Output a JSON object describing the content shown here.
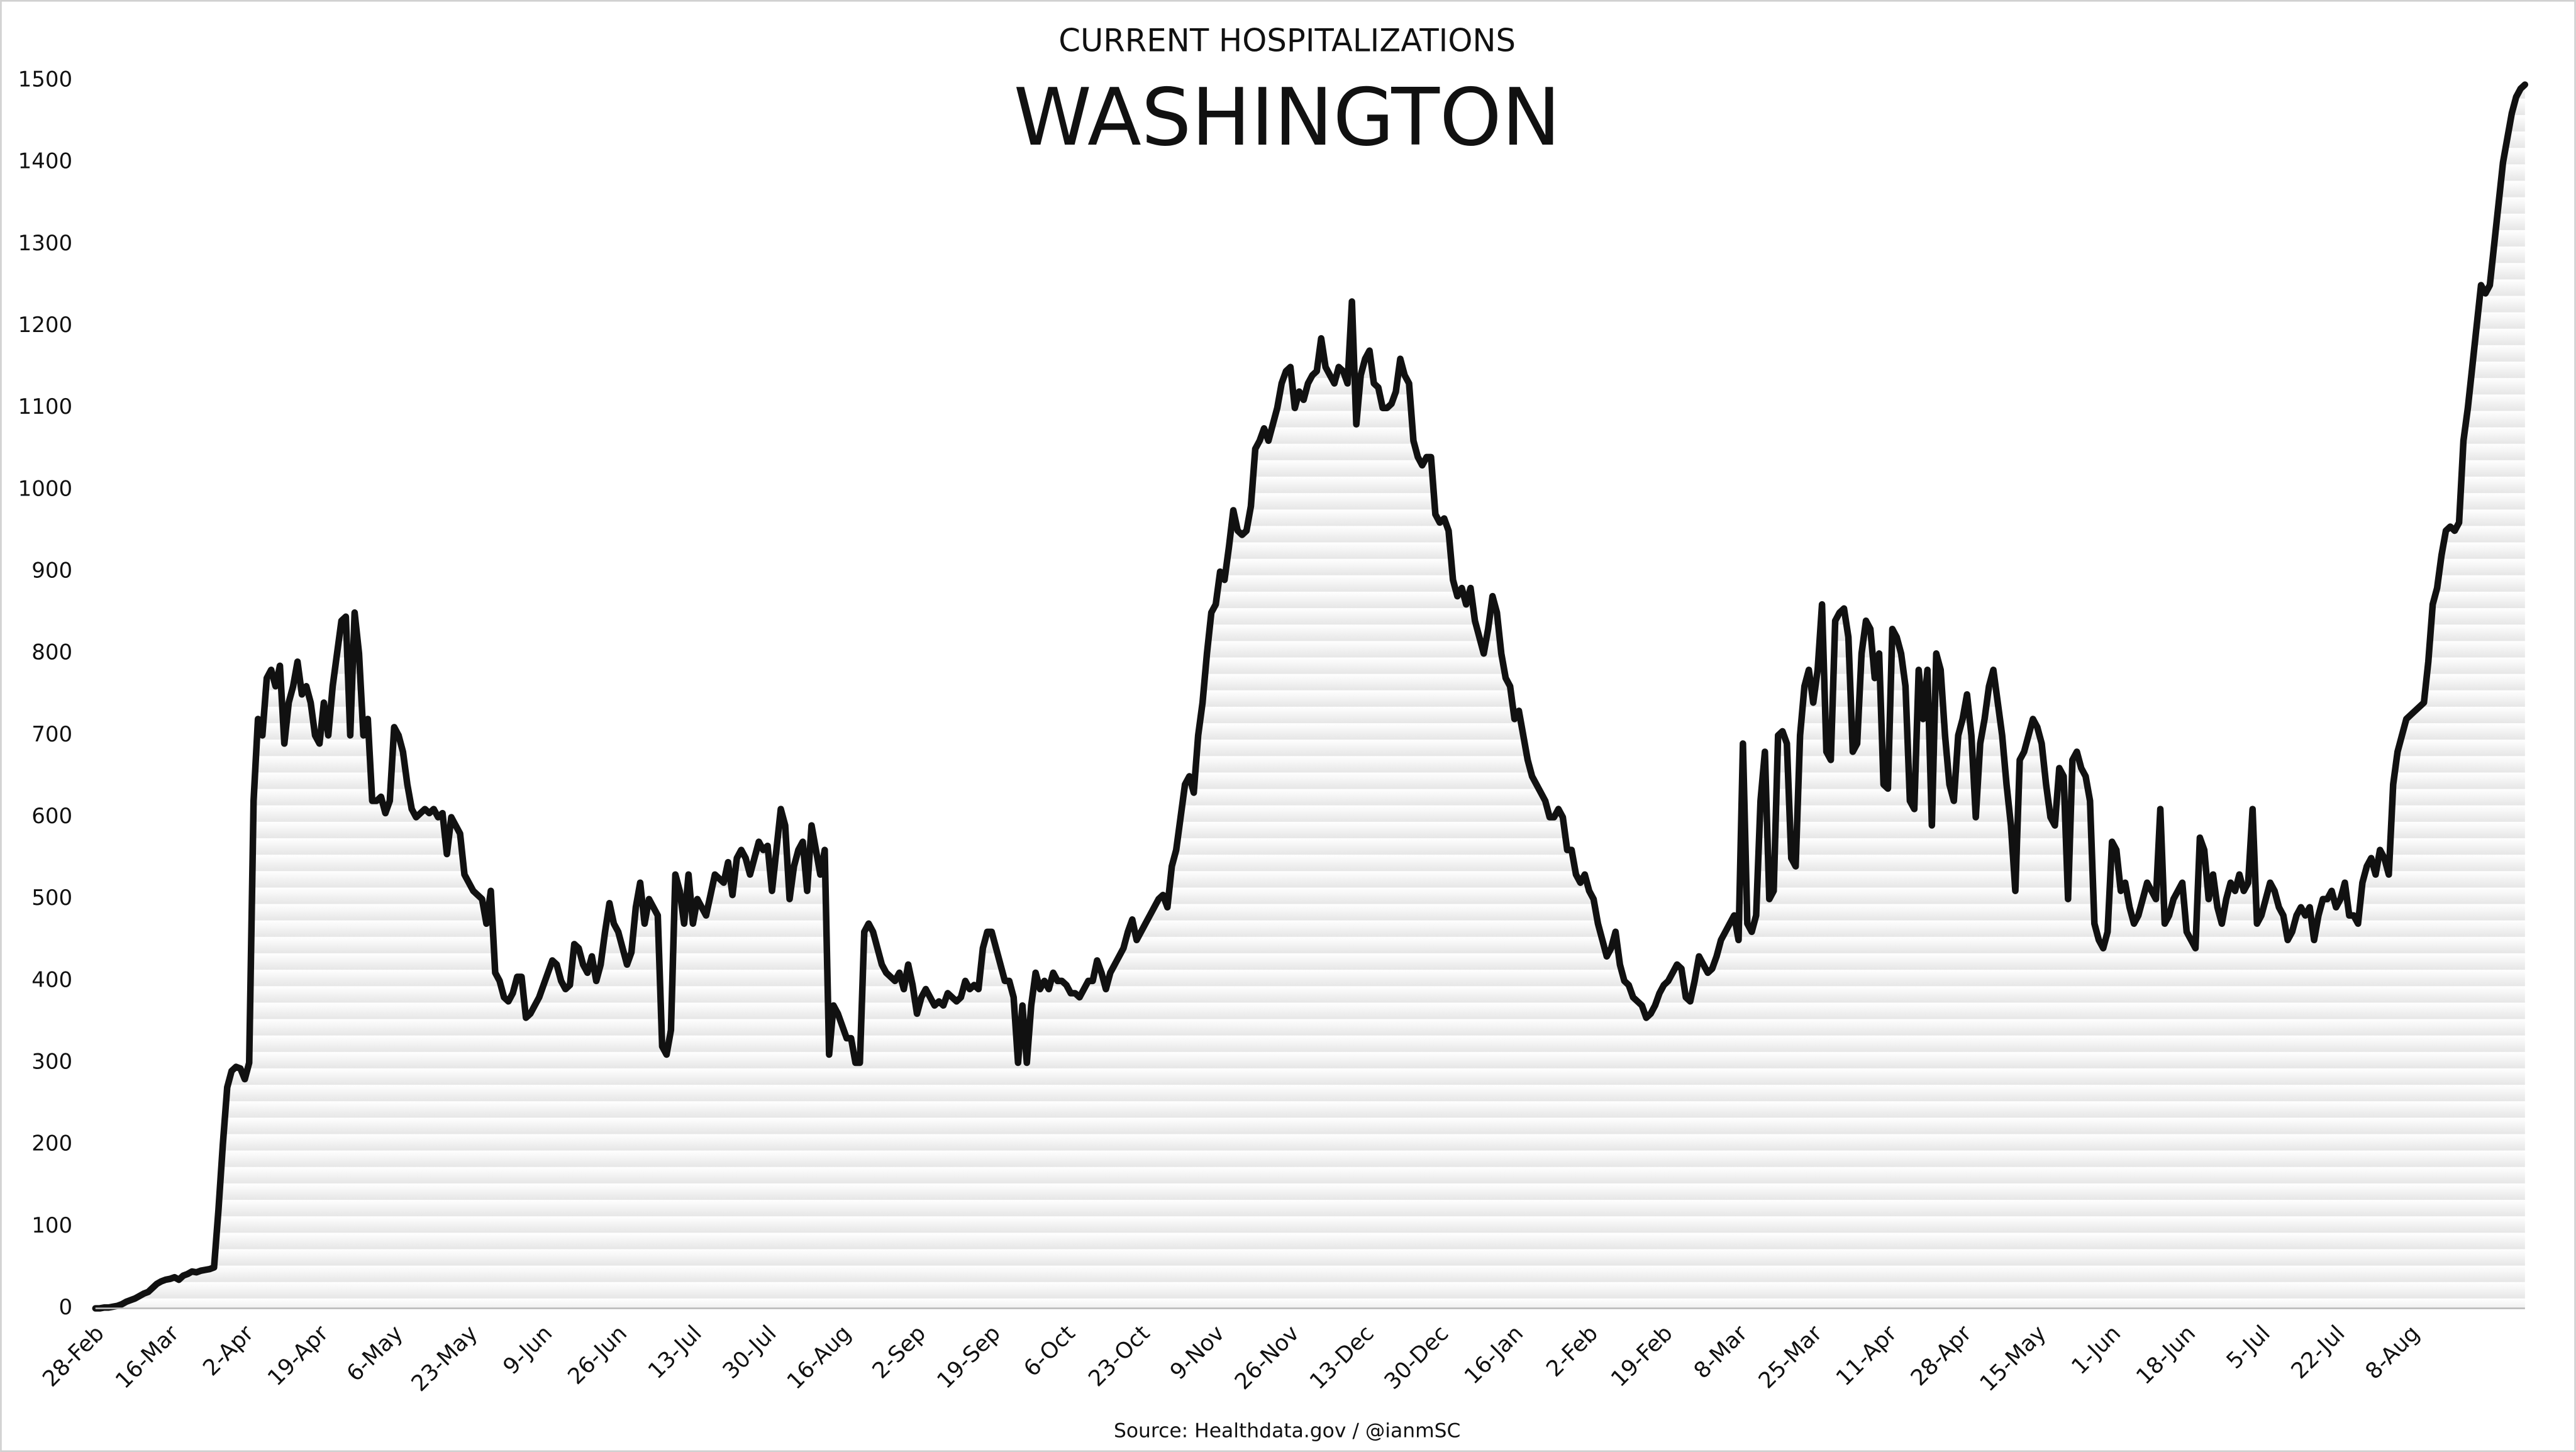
{
  "chart_data": {
    "type": "line",
    "header": "CURRENT HOSPITALIZATIONS",
    "title": "WASHINGTON",
    "source": "Source: Healthdata.gov / @ianmSC",
    "color": "#111111",
    "ylim": [
      0,
      1500
    ],
    "yticks": [
      0,
      100,
      200,
      300,
      400,
      500,
      600,
      700,
      800,
      900,
      1000,
      1100,
      1200,
      1300,
      1400,
      1500
    ],
    "categories": [
      "28-Feb",
      null,
      null,
      null,
      null,
      null,
      null,
      null,
      null,
      null,
      null,
      null,
      null,
      null,
      null,
      null,
      null,
      "16-Mar",
      null,
      null,
      null,
      null,
      null,
      null,
      null,
      null,
      null,
      null,
      null,
      null,
      null,
      null,
      null,
      null,
      "2-Apr",
      null,
      null,
      null,
      null,
      null,
      null,
      null,
      null,
      null,
      null,
      null,
      null,
      null,
      null,
      null,
      null,
      "19-Apr",
      null,
      null,
      null,
      null,
      null,
      null,
      null,
      null,
      null,
      null,
      null,
      null,
      null,
      null,
      null,
      null,
      "6-May",
      null,
      null,
      null,
      null,
      null,
      null,
      null,
      null,
      null,
      null,
      null,
      null,
      null,
      null,
      null,
      null,
      "23-May",
      null,
      null,
      null,
      null,
      null,
      null,
      null,
      null,
      null,
      null,
      null,
      null,
      null,
      null,
      null,
      null,
      "9-Jun",
      null,
      null,
      null,
      null,
      null,
      null,
      null,
      null,
      null,
      null,
      null,
      null,
      null,
      null,
      null,
      null,
      "26-Jun",
      null,
      null,
      null,
      null,
      null,
      null,
      null,
      null,
      null,
      null,
      null,
      null,
      null,
      null,
      null,
      null,
      "13-Jul",
      null,
      null,
      null,
      null,
      null,
      null,
      null,
      null,
      null,
      null,
      null,
      null,
      null,
      null,
      null,
      null,
      "30-Jul",
      null,
      null,
      null,
      null,
      null,
      null,
      null,
      null,
      null,
      null,
      null,
      null,
      null,
      null,
      null,
      null,
      "16-Aug",
      null,
      null,
      null,
      null,
      null,
      null,
      null,
      null,
      null,
      null,
      null,
      null,
      null,
      null,
      null,
      null,
      "2-Sep",
      null,
      null,
      null,
      null,
      null,
      null,
      null,
      null,
      null,
      null,
      null,
      null,
      null,
      null,
      null,
      null,
      "19-Sep",
      null,
      null,
      null,
      null,
      null,
      null,
      null,
      null,
      null,
      null,
      null,
      null,
      null,
      null,
      null,
      null,
      "6-Oct",
      null,
      null,
      null,
      null,
      null,
      null,
      null,
      null,
      null,
      null,
      null,
      null,
      null,
      null,
      null,
      null,
      "23-Oct",
      null,
      null,
      null,
      null,
      null,
      null,
      null,
      null,
      null,
      null,
      null,
      null,
      null,
      null,
      null,
      null,
      "9-Nov",
      null,
      null,
      null,
      null,
      null,
      null,
      null,
      null,
      null,
      null,
      null,
      null,
      null,
      null,
      null,
      null,
      "26-Nov",
      null,
      null,
      null,
      null,
      null,
      null,
      null,
      null,
      null,
      null,
      null,
      null,
      null,
      null,
      null,
      null,
      "13-Dec",
      null,
      null,
      null,
      null,
      null,
      null,
      null,
      null,
      null,
      null,
      null,
      null,
      null,
      null,
      null,
      null,
      "30-Dec",
      null,
      null,
      null,
      null,
      null,
      null,
      null,
      null,
      null,
      null,
      null,
      null,
      null,
      null,
      null,
      null,
      "16-Jan",
      null,
      null,
      null,
      null,
      null,
      null,
      null,
      null,
      null,
      null,
      null,
      null,
      null,
      null,
      null,
      null,
      "2-Feb",
      null,
      null,
      null,
      null,
      null,
      null,
      null,
      null,
      null,
      null,
      null,
      null,
      null,
      null,
      null,
      null,
      "19-Feb",
      null,
      null,
      null,
      null,
      null,
      null,
      null,
      null,
      null,
      null,
      null,
      null,
      null,
      null,
      null,
      null,
      "8-Mar",
      null,
      null,
      null,
      null,
      null,
      null,
      null,
      null,
      null,
      null,
      null,
      null,
      null,
      null,
      null,
      null,
      "25-Mar",
      null,
      null,
      null,
      null,
      null,
      null,
      null,
      null,
      null,
      null,
      null,
      null,
      null,
      null,
      null,
      null,
      "11-Apr",
      null,
      null,
      null,
      null,
      null,
      null,
      null,
      null,
      null,
      null,
      null,
      null,
      null,
      null,
      null,
      null,
      "28-Apr",
      null,
      null,
      null,
      null,
      null,
      null,
      null,
      null,
      null,
      null,
      null,
      null,
      null,
      null,
      null,
      null,
      "15-May",
      null,
      null,
      null,
      null,
      null,
      null,
      null,
      null,
      null,
      null,
      null,
      null,
      null,
      null,
      null,
      null,
      "1-Jun",
      null,
      null,
      null,
      null,
      null,
      null,
      null,
      null,
      null,
      null,
      null,
      null,
      null,
      null,
      null,
      null,
      "18-Jun",
      null,
      null,
      null,
      null,
      null,
      null,
      null,
      null,
      null,
      null,
      null,
      null,
      null,
      null,
      null,
      null,
      "5-Jul",
      null,
      null,
      null,
      null,
      null,
      null,
      null,
      null,
      null,
      null,
      null,
      null,
      null,
      null,
      null,
      null,
      "22-Jul",
      null,
      null,
      null,
      null,
      null,
      null,
      null,
      null,
      null,
      null,
      null,
      null,
      null,
      null,
      null,
      null,
      "8-Aug",
      null,
      null,
      null,
      null,
      null,
      null,
      null,
      null,
      null,
      null,
      null,
      null,
      null,
      null,
      null,
      null,
      null,
      null,
      null,
      null,
      null,
      null,
      null,
      null,
      null,
      null
    ],
    "values": [
      0,
      0,
      1,
      1,
      2,
      3,
      5,
      8,
      10,
      12,
      15,
      18,
      20,
      25,
      30,
      33,
      35,
      36,
      38,
      35,
      40,
      42,
      45,
      44,
      46,
      47,
      48,
      50,
      120,
      200,
      270,
      290,
      295,
      293,
      280,
      300,
      620,
      720,
      700,
      770,
      780,
      760,
      785,
      690,
      740,
      760,
      790,
      750,
      760,
      740,
      700,
      690,
      740,
      700,
      760,
      800,
      840,
      845,
      700,
      850,
      800,
      700,
      720,
      620,
      620,
      625,
      605,
      620,
      710,
      700,
      680,
      640,
      610,
      600,
      605,
      610,
      605,
      610,
      600,
      605,
      555,
      600,
      590,
      580,
      530,
      520,
      510,
      505,
      500,
      470,
      510,
      410,
      400,
      380,
      375,
      385,
      405,
      405,
      355,
      360,
      370,
      380,
      395,
      410,
      425,
      420,
      400,
      390,
      395,
      445,
      440,
      420,
      410,
      430,
      400,
      420,
      460,
      495,
      470,
      460,
      440,
      420,
      435,
      490,
      520,
      470,
      500,
      490,
      480,
      320,
      310,
      340,
      530,
      510,
      470,
      530,
      470,
      500,
      490,
      480,
      505,
      530,
      525,
      520,
      545,
      505,
      550,
      560,
      550,
      530,
      550,
      570,
      560,
      565,
      510,
      560,
      610,
      590,
      500,
      540,
      560,
      570,
      510,
      590,
      560,
      530,
      560,
      310,
      370,
      360,
      345,
      330,
      330,
      300,
      300,
      460,
      470,
      460,
      440,
      420,
      410,
      405,
      400,
      410,
      390,
      420,
      395,
      360,
      380,
      390,
      380,
      370,
      375,
      370,
      385,
      380,
      375,
      380,
      400,
      390,
      395,
      390,
      440,
      460,
      460,
      440,
      420,
      400,
      400,
      380,
      300,
      370,
      300,
      370,
      410,
      390,
      400,
      390,
      410,
      400,
      400,
      395,
      385,
      385,
      380,
      390,
      400,
      400,
      425,
      410,
      390,
      410,
      420,
      430,
      440,
      460,
      475,
      450,
      460,
      470,
      480,
      490,
      500,
      505,
      490,
      540,
      560,
      600,
      640,
      650,
      630,
      700,
      740,
      800,
      850,
      860,
      900,
      890,
      930,
      975,
      950,
      945,
      950,
      980,
      1050,
      1060,
      1075,
      1060,
      1080,
      1100,
      1130,
      1145,
      1150,
      1100,
      1120,
      1110,
      1130,
      1140,
      1145,
      1185,
      1150,
      1140,
      1130,
      1150,
      1145,
      1130,
      1230,
      1080,
      1140,
      1160,
      1170,
      1130,
      1125,
      1100,
      1100,
      1105,
      1120,
      1160,
      1140,
      1130,
      1060,
      1040,
      1030,
      1040,
      1040,
      970,
      960,
      965,
      950,
      890,
      870,
      880,
      860,
      880,
      840,
      820,
      800,
      830,
      870,
      850,
      800,
      770,
      760,
      720,
      730,
      700,
      670,
      650,
      640,
      630,
      620,
      600,
      600,
      610,
      600,
      560,
      560,
      530,
      520,
      530,
      510,
      500,
      470,
      450,
      430,
      440,
      460,
      420,
      400,
      395,
      380,
      375,
      370,
      355,
      360,
      370,
      385,
      395,
      400,
      410,
      420,
      415,
      380,
      375,
      400,
      430,
      420,
      410,
      415,
      430,
      450,
      460,
      470,
      480,
      450,
      690,
      470,
      460,
      480,
      620,
      680,
      500,
      510,
      700,
      705,
      690,
      550,
      540,
      700,
      760,
      780,
      740,
      780,
      860,
      680,
      670,
      840,
      850,
      855,
      820,
      680,
      690,
      800,
      840,
      830,
      770,
      800,
      640,
      635,
      830,
      820,
      800,
      760,
      620,
      610,
      780,
      720,
      780,
      590,
      800,
      780,
      700,
      640,
      620,
      700,
      720,
      750,
      700,
      600,
      690,
      720,
      760,
      780,
      740,
      700,
      640,
      590,
      510,
      670,
      680,
      700,
      720,
      710,
      690,
      640,
      600,
      590,
      660,
      650,
      500,
      670,
      680,
      660,
      650,
      620,
      470,
      450,
      440,
      460,
      570,
      560,
      510,
      520,
      490,
      470,
      480,
      500,
      520,
      510,
      500,
      610,
      470,
      480,
      500,
      510,
      520,
      460,
      450,
      440,
      575,
      560,
      500,
      530,
      490,
      470,
      500,
      520,
      510,
      530,
      510,
      520,
      610,
      470,
      480,
      500,
      520,
      510,
      490,
      480,
      450,
      460,
      480,
      490,
      480,
      490,
      450,
      480,
      500,
      500,
      510,
      490,
      500,
      520,
      480,
      480,
      470,
      520,
      540,
      550,
      530,
      560,
      550,
      530,
      640,
      680,
      700,
      720,
      725,
      730,
      735,
      740,
      790,
      860,
      880,
      920,
      950,
      955,
      950,
      960,
      1060,
      1100,
      1150,
      1200,
      1250,
      1240,
      1250,
      1300,
      1350,
      1400,
      1430,
      1460,
      1480,
      1490,
      1495
    ]
  }
}
